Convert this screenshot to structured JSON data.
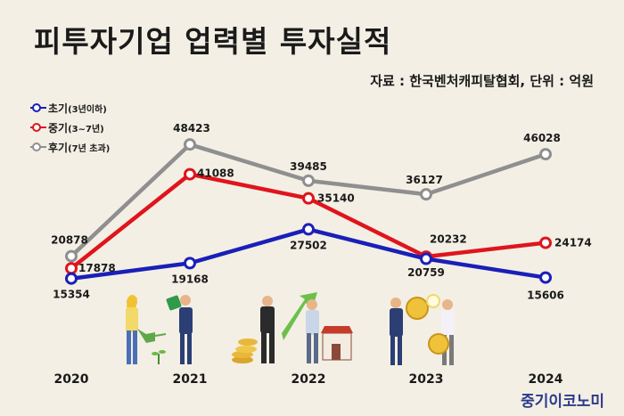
{
  "header": {
    "title": "피투자기업 업력별 투자실적",
    "source": "자료 : 한국벤처캐피탈협회, 단위 : 억원",
    "brand": "중기이코노미"
  },
  "colors": {
    "early": "#1a1fb8",
    "middle": "#e0141c",
    "late": "#8f8f8f"
  },
  "chart_data": {
    "type": "line",
    "title": "피투자기업 업력별 투자실적",
    "x": [
      "2020",
      "2021",
      "2022",
      "2023",
      "2024"
    ],
    "ylim": [
      10000,
      55000
    ],
    "unit": "억원",
    "grid": false,
    "legend_position": "top-left",
    "series": [
      {
        "name": "초기",
        "name_sub": "(3년이하)",
        "color": "#1a1fb8",
        "values": [
          15354,
          19168,
          27502,
          20232,
          15606
        ]
      },
      {
        "name": "중기",
        "name_sub": "(3~7년)",
        "color": "#e0141c",
        "values": [
          17878,
          41088,
          35140,
          20759,
          24174
        ]
      },
      {
        "name": "후기",
        "name_sub": "(7년 초과)",
        "color": "#8f8f8f",
        "values": [
          20878,
          48423,
          39485,
          36127,
          46028
        ]
      }
    ]
  }
}
